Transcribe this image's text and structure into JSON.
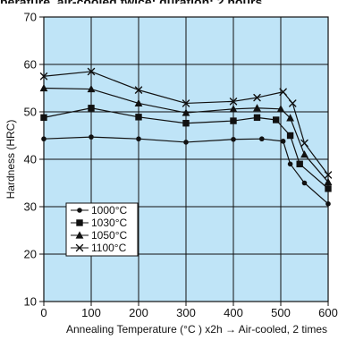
{
  "header": {
    "cropped_title": "perature, air-cooled twice; duration: 2 hours"
  },
  "chart_data": {
    "type": "line",
    "xlabel": "Annealing Temperature (°C ) x2h → Air-cooled, 2 times",
    "ylabel": "Hardness (HRC)",
    "xlim": [
      0,
      600
    ],
    "ylim": [
      10,
      70
    ],
    "xticks": [
      0,
      100,
      200,
      300,
      400,
      500,
      600
    ],
    "yticks": [
      10,
      20,
      30,
      40,
      50,
      60,
      70
    ],
    "grid": true,
    "legend_position": "bottom-left",
    "plot_background": "#bfe4f7",
    "series": [
      {
        "name": "1000°C",
        "marker": "dot",
        "x": [
          0,
          100,
          200,
          300,
          400,
          460,
          505,
          520,
          550,
          600
        ],
        "y": [
          44.3,
          44.7,
          44.3,
          43.6,
          44.2,
          44.3,
          43.8,
          39,
          35,
          30.6
        ]
      },
      {
        "name": "1030°C",
        "marker": "square",
        "x": [
          0,
          100,
          200,
          300,
          400,
          450,
          490,
          520,
          540,
          600
        ],
        "y": [
          48.8,
          50.8,
          48.9,
          47.6,
          48.1,
          48.8,
          48.3,
          45,
          39,
          33.8
        ]
      },
      {
        "name": "1050°C",
        "marker": "triangle",
        "x": [
          0,
          100,
          200,
          300,
          400,
          450,
          500,
          520,
          550,
          600
        ],
        "y": [
          55,
          54.8,
          51.8,
          49.8,
          50.6,
          50.8,
          50.6,
          48.7,
          41,
          35.2
        ]
      },
      {
        "name": "1100°C",
        "marker": "x",
        "x": [
          0,
          100,
          200,
          300,
          400,
          450,
          505,
          525,
          550,
          600
        ],
        "y": [
          57.5,
          58.5,
          54.6,
          51.8,
          52.2,
          53,
          54.2,
          51.8,
          43.4,
          36.7
        ]
      }
    ]
  }
}
